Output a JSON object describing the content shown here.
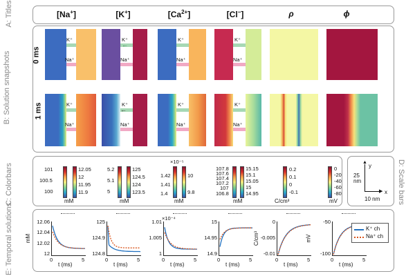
{
  "row_labels": {
    "titles": "A: Titles",
    "snapshots": "B: Solution snapshots",
    "colorbars": "C: Colorbars",
    "temporal": "E: Temporal solutions",
    "scale": "D: Scale bars"
  },
  "column_titles": {
    "na": "[Na",
    "na_sup": "+",
    "na_end": "]",
    "k": "[K",
    "k_sup": "+",
    "k_end": "]",
    "ca": "[Ca",
    "ca_sup": "2+",
    "ca_end": "]",
    "cl": "[Cl",
    "cl_sup": "−",
    "cl_end": "]",
    "rho": "ρ",
    "phi": "ϕ"
  },
  "times": {
    "t0": "0 ms",
    "t1": "1 ms"
  },
  "channel_labels": {
    "k": "K⁺",
    "na": "Na⁺"
  },
  "colorbars": {
    "na": {
      "left": [
        "101",
        "100.5",
        "100"
      ],
      "right": [
        "12.05",
        "12",
        "11.95",
        "11.9"
      ],
      "unit": "mM"
    },
    "k": {
      "left": [
        "5.2",
        "5.1",
        "5"
      ],
      "right": [
        "125",
        "124.5",
        "124",
        "123.5"
      ],
      "unit": "mM"
    },
    "ca": {
      "exp": "×10⁻⁵",
      "left": [
        "1.42",
        "1.41",
        "1.4"
      ],
      "right": [
        "10",
        "9.8"
      ],
      "unit": "mM"
    },
    "cl": {
      "left": [
        "107.8",
        "107.6",
        "107.4",
        "107.2",
        "107",
        "106.8"
      ],
      "right": [
        "15.15",
        "15.1",
        "15.05",
        "15",
        "14.95"
      ],
      "unit": "mM"
    },
    "rho": {
      "ticks": [
        "0.2",
        "0.1",
        "0",
        "-0.1"
      ],
      "unit": "C/cm³"
    },
    "phi": {
      "ticks": [
        "0",
        "-20",
        "-40",
        "-60",
        "-80"
      ],
      "unit": "mV"
    }
  },
  "scale_bar": {
    "y": "y",
    "x": "x",
    "v": "25 nm",
    "h": "10 nm"
  },
  "plots": [
    {
      "id": "na",
      "yticks": [
        "12.06",
        "12.04",
        "12.02",
        "12"
      ],
      "ylabel": "mM",
      "xlabel": "t (ms)",
      "xticks": [
        "0",
        "5"
      ],
      "exp": ""
    },
    {
      "id": "k",
      "yticks": [
        "125",
        "124.9",
        "124.8"
      ],
      "ylabel": "",
      "xlabel": "t (ms)",
      "xticks": [
        "0",
        "5"
      ],
      "exp": ""
    },
    {
      "id": "ca",
      "yticks": [
        "1.01",
        "1.005",
        "1"
      ],
      "ylabel": "",
      "xlabel": "t (ms)",
      "xticks": [
        "0",
        "5"
      ],
      "exp": "×10⁻⁴"
    },
    {
      "id": "cl",
      "yticks": [
        "15",
        "14.95",
        "14.9"
      ],
      "ylabel": "",
      "xlabel": "t (ms)",
      "xticks": [
        "0",
        "5"
      ],
      "exp": ""
    },
    {
      "id": "rho",
      "yticks": [
        "0",
        "-0.005",
        "-0.01"
      ],
      "ylabel": "C/cm³",
      "xlabel": "t (ms)",
      "xticks": [
        "0",
        "5"
      ],
      "exp": ""
    },
    {
      "id": "phi",
      "yticks": [
        "-50",
        "-100"
      ],
      "ylabel": "mV",
      "xlabel": "t (ms)",
      "xticks": [
        "0",
        "5"
      ],
      "exp": ""
    }
  ],
  "legend": {
    "k": "K⁺ ch",
    "na": "Na⁺ ch"
  },
  "colors": {
    "k_line": "#1f6fbf",
    "na_line": "#d95319",
    "frame": "#9a9a9a"
  }
}
